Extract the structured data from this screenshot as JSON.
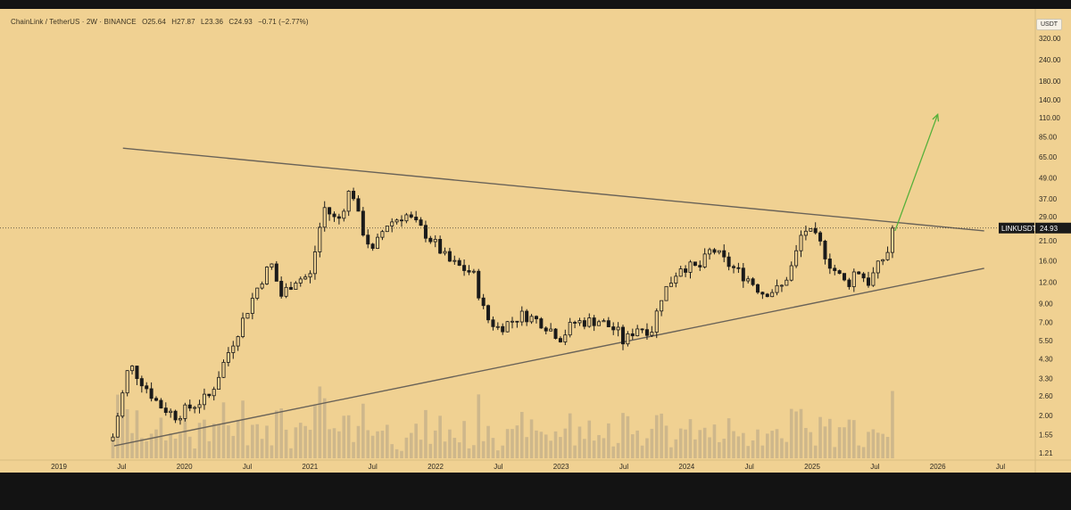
{
  "legend": {
    "symbol": "ChainLink / TetherUS · 2W · BINANCE",
    "o": "O25.64",
    "h": "H27.87",
    "l": "L23.36",
    "c": "C24.93",
    "change": "−0.71 (−2.77%)"
  },
  "unit": "USDT",
  "price_tag": {
    "symbol": "LINKUSDT",
    "value": "24.93"
  },
  "colors": {
    "background": "#f0d192",
    "candle": "#1a1a1a",
    "trendline": "#6a6358",
    "projection": "#55b03a",
    "volume": "#c8b389",
    "tag_bg": "#1a1a1a",
    "tag_fg": "#ffffff"
  },
  "chart_data": {
    "type": "candlestick",
    "y_scale": "log",
    "y_ticks": [
      "320.00",
      "240.00",
      "180.00",
      "140.00",
      "110.00",
      "85.00",
      "65.00",
      "49.00",
      "37.00",
      "29.00",
      "21.00",
      "16.00",
      "12.00",
      "9.00",
      "7.00",
      "5.50",
      "4.30",
      "3.30",
      "2.60",
      "2.00",
      "1.55",
      "1.21"
    ],
    "x_ticks": [
      "2019",
      "Jul",
      "2020",
      "Jul",
      "2021",
      "Jul",
      "2022",
      "Jul",
      "2023",
      "Jul",
      "2024",
      "Jul",
      "2025",
      "Jul",
      "2026",
      "Jul"
    ],
    "x_tick_times": [
      2019.0,
      2019.5,
      2020.0,
      2020.5,
      2021.0,
      2021.5,
      2022.0,
      2022.5,
      2023.0,
      2023.5,
      2024.0,
      2024.5,
      2025.0,
      2025.5,
      2026.0,
      2026.5
    ],
    "ylim": [
      1.1,
      350
    ],
    "last_price": 24.93,
    "key_points": [
      {
        "t": 2019.43,
        "price": 1.5
      },
      {
        "t": 2019.56,
        "price": 4.0
      },
      {
        "t": 2019.8,
        "price": 2.3
      },
      {
        "t": 2019.93,
        "price": 2.0
      },
      {
        "t": 2020.2,
        "price": 2.6
      },
      {
        "t": 2020.35,
        "price": 4.7
      },
      {
        "t": 2020.6,
        "price": 12.0
      },
      {
        "t": 2020.69,
        "price": 15.5
      },
      {
        "t": 2020.77,
        "price": 10.0
      },
      {
        "t": 2020.88,
        "price": 12.5
      },
      {
        "t": 2021.0,
        "price": 13.0
      },
      {
        "t": 2021.11,
        "price": 33.0
      },
      {
        "t": 2021.22,
        "price": 27.0
      },
      {
        "t": 2021.33,
        "price": 44.0
      },
      {
        "t": 2021.4,
        "price": 26.0
      },
      {
        "t": 2021.5,
        "price": 18.0
      },
      {
        "t": 2021.6,
        "price": 26.0
      },
      {
        "t": 2021.76,
        "price": 30.0
      },
      {
        "t": 2021.9,
        "price": 24.0
      },
      {
        "t": 2022.0,
        "price": 20.0
      },
      {
        "t": 2022.1,
        "price": 16.0
      },
      {
        "t": 2022.3,
        "price": 13.5
      },
      {
        "t": 2022.4,
        "price": 7.5
      },
      {
        "t": 2022.5,
        "price": 6.5
      },
      {
        "t": 2022.7,
        "price": 7.8
      },
      {
        "t": 2022.85,
        "price": 7.0
      },
      {
        "t": 2023.0,
        "price": 5.7
      },
      {
        "t": 2023.1,
        "price": 7.0
      },
      {
        "t": 2023.3,
        "price": 7.2
      },
      {
        "t": 2023.45,
        "price": 6.2
      },
      {
        "t": 2023.5,
        "price": 5.3
      },
      {
        "t": 2023.6,
        "price": 6.6
      },
      {
        "t": 2023.72,
        "price": 6.3
      },
      {
        "t": 2023.8,
        "price": 10.0
      },
      {
        "t": 2023.95,
        "price": 15.0
      },
      {
        "t": 2024.1,
        "price": 14.5
      },
      {
        "t": 2024.2,
        "price": 19.0
      },
      {
        "t": 2024.3,
        "price": 16.0
      },
      {
        "t": 2024.4,
        "price": 14.0
      },
      {
        "t": 2024.5,
        "price": 12.5
      },
      {
        "t": 2024.6,
        "price": 10.5
      },
      {
        "t": 2024.75,
        "price": 11.0
      },
      {
        "t": 2024.85,
        "price": 15.5
      },
      {
        "t": 2024.93,
        "price": 25.0
      },
      {
        "t": 2025.05,
        "price": 21.0
      },
      {
        "t": 2025.15,
        "price": 15.0
      },
      {
        "t": 2025.28,
        "price": 11.5
      },
      {
        "t": 2025.35,
        "price": 14.5
      },
      {
        "t": 2025.45,
        "price": 12.0
      },
      {
        "t": 2025.55,
        "price": 16.0
      },
      {
        "t": 2025.6,
        "price": 18.0
      },
      {
        "t": 2025.64,
        "price": 24.93
      }
    ],
    "trendlines": [
      {
        "name": "upper",
        "from": {
          "t": 2019.51,
          "price": 73.0
        },
        "to": {
          "t": 2026.37,
          "price": 24.0
        }
      },
      {
        "name": "lower",
        "from": {
          "t": 2019.44,
          "price": 1.33
        },
        "to": {
          "t": 2026.37,
          "price": 14.5
        }
      }
    ],
    "projection": {
      "from": {
        "t": 2025.66,
        "price": 24.0
      },
      "to": {
        "t": 2026.0,
        "price": 115.0
      }
    }
  }
}
